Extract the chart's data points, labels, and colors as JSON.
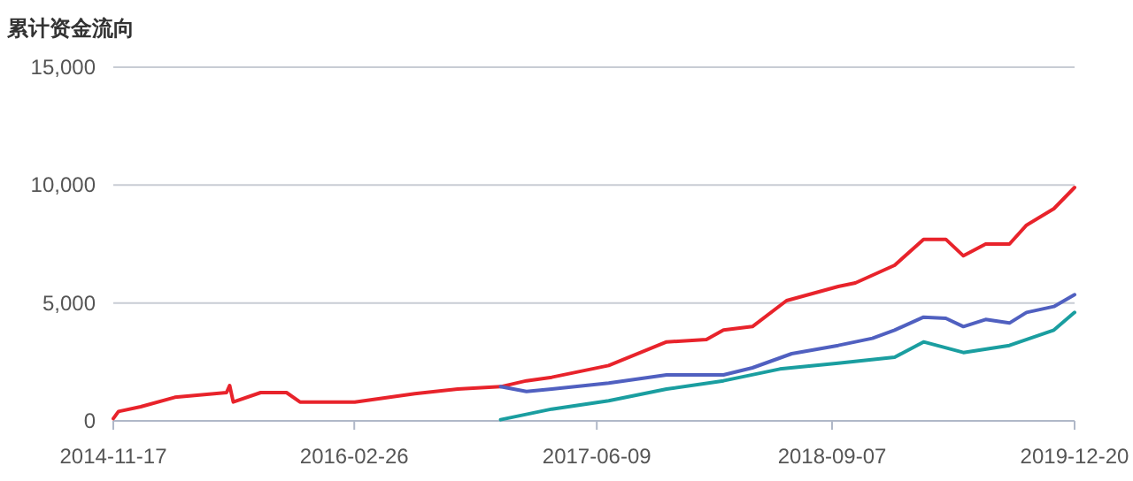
{
  "chart_data": {
    "type": "line",
    "title": "累计资金流向",
    "xlim": [
      "2014-11-17",
      "2019-12-20"
    ],
    "xticks": [
      "2014-11-17",
      "2016-02-26",
      "2017-06-09",
      "2018-09-07",
      "2019-12-20"
    ],
    "ylim": [
      0,
      15000
    ],
    "yticks": [
      0,
      {
        "value": 5000,
        "label": "5,000"
      },
      {
        "value": 10000,
        "label": "10,000"
      },
      {
        "value": 15000,
        "label": "15,000"
      }
    ],
    "grid": "y",
    "series": [
      {
        "color": "#e8232b",
        "x": [
          "2014-11-17",
          "2014-11-27",
          "2015-01-09",
          "2015-03-16",
          "2015-06-24",
          "2015-06-30",
          "2015-07-07",
          "2015-08-29",
          "2015-10-18",
          "2015-11-13",
          "2016-02-27",
          "2016-06-22",
          "2016-09-13",
          "2016-12-05",
          "2017-01-24",
          "2017-03-14",
          "2017-07-02",
          "2017-10-22",
          "2018-01-07",
          "2018-02-09",
          "2018-04-06",
          "2018-06-11",
          "2018-09-19",
          "2018-10-22",
          "2019-01-06",
          "2019-03-03",
          "2019-04-15",
          "2019-05-19",
          "2019-07-01",
          "2019-08-16",
          "2019-09-18",
          "2019-11-10",
          "2019-12-20"
        ],
        "values": [
          100,
          400,
          600,
          1000,
          1200,
          1500,
          800,
          1200,
          1200,
          800,
          800,
          1150,
          1350,
          1450,
          1700,
          1850,
          2350,
          3350,
          3450,
          3850,
          4000,
          5100,
          5700,
          5850,
          6600,
          7700,
          7700,
          7000,
          7500,
          7500,
          8300,
          9000,
          9900
        ]
      },
      {
        "color": "#5060c0",
        "x": [
          "2016-12-05",
          "2017-01-24",
          "2017-03-14",
          "2017-07-02",
          "2017-10-22",
          "2018-02-09",
          "2018-04-06",
          "2018-06-21",
          "2018-09-19",
          "2018-11-24",
          "2019-01-06",
          "2019-03-03",
          "2019-04-15",
          "2019-05-19",
          "2019-07-01",
          "2019-08-16",
          "2019-09-18",
          "2019-11-10",
          "2019-12-20"
        ],
        "values": [
          1450,
          1250,
          1350,
          1600,
          1950,
          1950,
          2250,
          2850,
          3200,
          3500,
          3850,
          4400,
          4350,
          4000,
          4300,
          4150,
          4600,
          4850,
          5350
        ]
      },
      {
        "color": "#1a9ea0",
        "x": [
          "2016-12-05",
          "2017-03-14",
          "2017-07-02",
          "2017-10-22",
          "2018-02-09",
          "2018-05-29",
          "2018-09-19",
          "2019-01-06",
          "2019-03-03",
          "2019-05-19",
          "2019-08-16",
          "2019-11-10",
          "2019-12-20"
        ],
        "values": [
          50,
          500,
          850,
          1350,
          1700,
          2200,
          2450,
          2700,
          3350,
          2900,
          3200,
          3850,
          4600
        ]
      }
    ]
  }
}
